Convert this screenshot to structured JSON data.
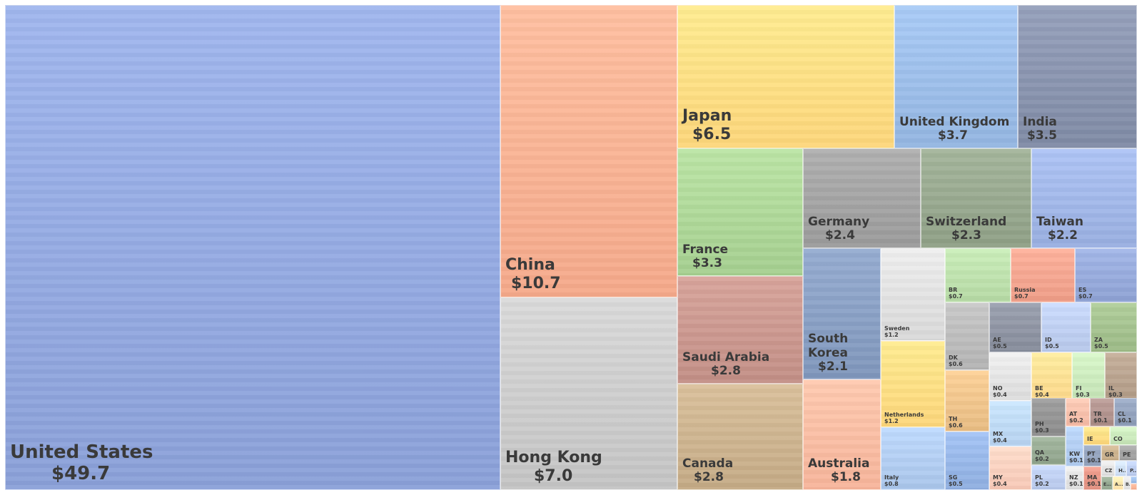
{
  "chart_data": {
    "type": "treemap",
    "title": "",
    "value_prefix": "$",
    "items": [
      {
        "label": "United States",
        "value": 49.7,
        "color": "#8aa0d8"
      },
      {
        "label": "China",
        "value": 10.7,
        "color": "#f5a98a"
      },
      {
        "label": "Hong Kong",
        "value": 7.0,
        "color": "#c4c4c4"
      },
      {
        "label": "Japan",
        "value": 6.5,
        "color": "#fdd67a"
      },
      {
        "label": "United Kingdom",
        "value": 3.7,
        "color": "#93b5e1"
      },
      {
        "label": "India",
        "value": 3.5,
        "color": "#7f8aa5"
      },
      {
        "label": "France",
        "value": 3.3,
        "color": "#a5cf8f"
      },
      {
        "label": "Germany",
        "value": 2.4,
        "color": "#9a9a9a"
      },
      {
        "label": "Switzerland",
        "value": 2.3,
        "color": "#8e9f85"
      },
      {
        "label": "Taiwan",
        "value": 2.2,
        "color": "#98aee0"
      },
      {
        "label": "Saudi Arabia",
        "value": 2.8,
        "color": "#c28e85"
      },
      {
        "label": "Canada",
        "value": 2.8,
        "color": "#c4aa85"
      },
      {
        "label": "South Korea",
        "value": 2.1,
        "color": "#7f96bb"
      },
      {
        "label": "Australia",
        "value": 1.8,
        "color": "#f7b49a"
      },
      {
        "label": "Sweden",
        "value": 1.2,
        "color": "#d9d9d9"
      },
      {
        "label": "Netherlands",
        "value": 1.2,
        "color": "#fdd67a"
      },
      {
        "label": "Italy",
        "value": 0.8,
        "color": "#a9c5ea"
      },
      {
        "label": "BR",
        "value": 0.7,
        "color": "#b5d9a4"
      },
      {
        "label": "Russia",
        "value": 0.7,
        "color": "#ee9c86"
      },
      {
        "label": "ES",
        "value": 0.7,
        "color": "#8da1d3"
      },
      {
        "label": "DK",
        "value": 0.6,
        "color": "#b3b3b3"
      },
      {
        "label": "TH",
        "value": 0.6,
        "color": "#e8bc82"
      },
      {
        "label": "SG",
        "value": 0.5,
        "color": "#8eaee0"
      },
      {
        "label": "AE",
        "value": 0.5,
        "color": "#858b9a"
      },
      {
        "label": "ID",
        "value": 0.5,
        "color": "#b6c7ea"
      },
      {
        "label": "ZA",
        "value": 0.5,
        "color": "#9bb985"
      },
      {
        "label": "NO",
        "value": 0.4,
        "color": "#dcdcdc"
      },
      {
        "label": "BE",
        "value": 0.4,
        "color": "#fdd88a"
      },
      {
        "label": "FI",
        "value": 0.3,
        "color": "#c4e3b5"
      },
      {
        "label": "IL",
        "value": 0.3,
        "color": "#b09a85"
      },
      {
        "label": "MX",
        "value": 0.4,
        "color": "#b6d2f0"
      },
      {
        "label": "PH",
        "value": 0.3,
        "color": "#8a8a8a"
      },
      {
        "label": "AT",
        "value": 0.2,
        "color": "#f5b8a3"
      },
      {
        "label": "TR",
        "value": 0.1,
        "color": "#a98a85"
      },
      {
        "label": "CL",
        "value": 0.1,
        "color": "#8a9ab5"
      },
      {
        "label": "QA",
        "value": 0.2,
        "color": "#8ea28a"
      },
      {
        "label": "KW",
        "value": 0.1,
        "color": "#a9c5ea"
      },
      {
        "label": "IE",
        "value": null,
        "color": "#fdd67a"
      },
      {
        "label": "CO",
        "value": null,
        "color": "#c4e3b5"
      },
      {
        "label": "PT",
        "value": 0.1,
        "color": "#8a9ab5"
      },
      {
        "label": "GR",
        "value": null,
        "color": "#c4aa85"
      },
      {
        "label": "PE",
        "value": null,
        "color": "#9a9a9a"
      },
      {
        "label": "CZ",
        "value": null,
        "color": "#dcdcdc"
      },
      {
        "label": "H...",
        "value": null,
        "color": "#c9daf2"
      },
      {
        "label": "P...",
        "value": null,
        "color": "#b6c7ea"
      },
      {
        "label": "MY",
        "value": 0.4,
        "color": "#f8c8b6"
      },
      {
        "label": "PL",
        "value": 0.2,
        "color": "#b6c7ea"
      },
      {
        "label": "NZ",
        "value": 0.1,
        "color": "#dcdcdc"
      },
      {
        "label": "MA",
        "value": 0.1,
        "color": "#e08d7d"
      },
      {
        "label": "E...",
        "value": null,
        "color": "#8ea28a"
      },
      {
        "label": "A...",
        "value": null,
        "color": "#fde0a5"
      },
      {
        "label": "B...",
        "value": null,
        "color": "#dcdcdc"
      },
      {
        "label": "",
        "value": null,
        "color": "#93b5e1"
      },
      {
        "label": "",
        "value": null,
        "color": "#f5a98a"
      }
    ]
  }
}
